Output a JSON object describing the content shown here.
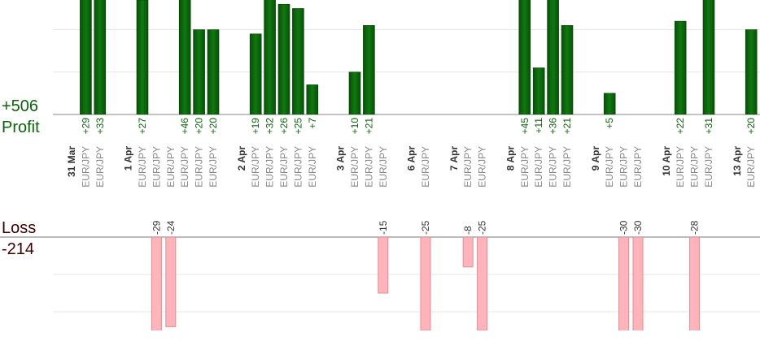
{
  "profit": {
    "title": "Profit",
    "total": {
      "value": 506,
      "label": "+506"
    },
    "lim": [
      0,
      27
    ],
    "ticks": [
      10,
      20
    ],
    "color": "#0b640b"
  },
  "loss": {
    "title": "Loss",
    "total": -214,
    "lim": [
      0,
      -25
    ],
    "ticks": [
      -10,
      -20
    ],
    "color": "#ffb3ba"
  },
  "days": [
    {
      "date": "31 Mar",
      "trades": [
        {
          "pair": "EUR/JPY",
          "value": 29,
          "label": "+29"
        },
        {
          "pair": "EUR/JPY",
          "value": 33,
          "label": "+33"
        }
      ]
    },
    {
      "date": "1 Apr",
      "trades": [
        {
          "pair": "EUR/JPY",
          "value": 27,
          "label": "+27"
        },
        {
          "pair": "EUR/JPY",
          "value": -29
        },
        {
          "pair": "EUR/JPY",
          "value": -24
        },
        {
          "pair": "EUR/JPY",
          "value": 46,
          "label": "+46"
        },
        {
          "pair": "EUR/JPY",
          "value": 20,
          "label": "+20"
        },
        {
          "pair": "EUR/JPY",
          "value": 20,
          "label": "+20"
        }
      ]
    },
    {
      "date": "2 Apr",
      "trades": [
        {
          "pair": "EUR/JPY",
          "value": 19,
          "label": "+19"
        },
        {
          "pair": "EUR/JPY",
          "value": 32,
          "label": "+32"
        },
        {
          "pair": "EUR/JPY",
          "value": 26,
          "label": "+26"
        },
        {
          "pair": "EUR/JPY",
          "value": 25,
          "label": "+25"
        },
        {
          "pair": "EUR/JPY",
          "value": 7,
          "label": "+7"
        }
      ]
    },
    {
      "date": "3 Apr",
      "trades": [
        {
          "pair": "EUR/JPY",
          "value": 10,
          "label": "+10"
        },
        {
          "pair": "EUR/JPY",
          "value": 21,
          "label": "+21"
        },
        {
          "pair": "EUR/JPY",
          "value": -15
        }
      ]
    },
    {
      "date": "6 Apr",
      "trades": [
        {
          "pair": "EUR/JPY",
          "value": -25
        }
      ]
    },
    {
      "date": "7 Apr",
      "trades": [
        {
          "pair": "EUR/JPY",
          "value": -8
        },
        {
          "pair": "EUR/JPY",
          "value": -25
        }
      ]
    },
    {
      "date": "8 Apr",
      "trades": [
        {
          "pair": "EUR/JPY",
          "value": 45,
          "label": "+45"
        },
        {
          "pair": "EUR/JPY",
          "value": 11,
          "label": "+11"
        },
        {
          "pair": "EUR/JPY",
          "value": 36,
          "label": "+36"
        },
        {
          "pair": "EUR/JPY",
          "value": 21,
          "label": "+21"
        }
      ]
    },
    {
      "date": "9 Apr",
      "trades": [
        {
          "pair": "EUR/JPY",
          "value": 5,
          "label": "+5"
        },
        {
          "pair": "EUR/JPY",
          "value": -30
        },
        {
          "pair": "EUR/JPY",
          "value": -30
        }
      ]
    },
    {
      "date": "10 Apr",
      "trades": [
        {
          "pair": "EUR/JPY",
          "value": 22,
          "label": "+22"
        },
        {
          "pair": "EUR/JPY",
          "value": -28
        },
        {
          "pair": "EUR/JPY",
          "value": 31,
          "label": "+31"
        }
      ]
    },
    {
      "date": "13 Apr",
      "trades": [
        {
          "pair": "EUR/JPY",
          "value": 20,
          "label": "+20"
        }
      ]
    }
  ]
}
